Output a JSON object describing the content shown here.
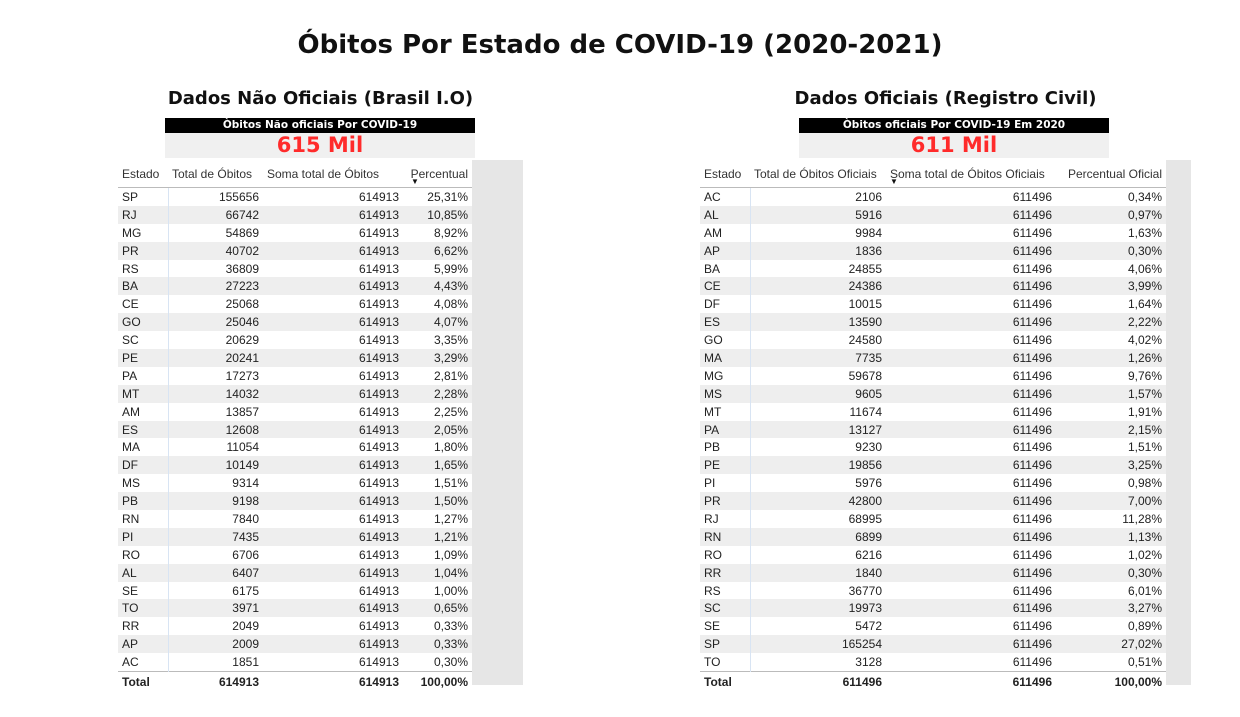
{
  "title": "Óbitos Por Estado de COVID-19 (2020-2021)",
  "left": {
    "panel_title": "Dados Não Oficiais (Brasil I.O)",
    "card_header": "Òbitos Não oficiais Por COVID-19",
    "card_value": "615 Mil",
    "columns": [
      "Estado",
      "Total de Óbitos",
      "Soma total de Óbitos",
      "Percentual"
    ],
    "sort_icon": "sort-descending-icon",
    "rows": [
      [
        "SP",
        "155656",
        "614913",
        "25,31%"
      ],
      [
        "RJ",
        "66742",
        "614913",
        "10,85%"
      ],
      [
        "MG",
        "54869",
        "614913",
        "8,92%"
      ],
      [
        "PR",
        "40702",
        "614913",
        "6,62%"
      ],
      [
        "RS",
        "36809",
        "614913",
        "5,99%"
      ],
      [
        "BA",
        "27223",
        "614913",
        "4,43%"
      ],
      [
        "CE",
        "25068",
        "614913",
        "4,08%"
      ],
      [
        "GO",
        "25046",
        "614913",
        "4,07%"
      ],
      [
        "SC",
        "20629",
        "614913",
        "3,35%"
      ],
      [
        "PE",
        "20241",
        "614913",
        "3,29%"
      ],
      [
        "PA",
        "17273",
        "614913",
        "2,81%"
      ],
      [
        "MT",
        "14032",
        "614913",
        "2,28%"
      ],
      [
        "AM",
        "13857",
        "614913",
        "2,25%"
      ],
      [
        "ES",
        "12608",
        "614913",
        "2,05%"
      ],
      [
        "MA",
        "11054",
        "614913",
        "1,80%"
      ],
      [
        "DF",
        "10149",
        "614913",
        "1,65%"
      ],
      [
        "MS",
        "9314",
        "614913",
        "1,51%"
      ],
      [
        "PB",
        "9198",
        "614913",
        "1,50%"
      ],
      [
        "RN",
        "7840",
        "614913",
        "1,27%"
      ],
      [
        "PI",
        "7435",
        "614913",
        "1,21%"
      ],
      [
        "RO",
        "6706",
        "614913",
        "1,09%"
      ],
      [
        "AL",
        "6407",
        "614913",
        "1,04%"
      ],
      [
        "SE",
        "6175",
        "614913",
        "1,00%"
      ],
      [
        "TO",
        "3971",
        "614913",
        "0,65%"
      ],
      [
        "RR",
        "2049",
        "614913",
        "0,33%"
      ],
      [
        "AP",
        "2009",
        "614913",
        "0,33%"
      ],
      [
        "AC",
        "1851",
        "614913",
        "0,30%"
      ]
    ],
    "total": [
      "Total",
      "614913",
      "614913",
      "100,00%"
    ]
  },
  "right": {
    "panel_title": "Dados Oficiais (Registro Civil)",
    "card_header": "Òbitos oficiais Por COVID-19 Em 2020",
    "card_value": "611 Mil",
    "columns": [
      "Estado",
      "Total de Óbitos Oficiais",
      "Soma total de Óbitos Oficiais",
      "Percentual Oficial"
    ],
    "sort_icon": "sort-descending-icon",
    "rows": [
      [
        "AC",
        "2106",
        "611496",
        "0,34%"
      ],
      [
        "AL",
        "5916",
        "611496",
        "0,97%"
      ],
      [
        "AM",
        "9984",
        "611496",
        "1,63%"
      ],
      [
        "AP",
        "1836",
        "611496",
        "0,30%"
      ],
      [
        "BA",
        "24855",
        "611496",
        "4,06%"
      ],
      [
        "CE",
        "24386",
        "611496",
        "3,99%"
      ],
      [
        "DF",
        "10015",
        "611496",
        "1,64%"
      ],
      [
        "ES",
        "13590",
        "611496",
        "2,22%"
      ],
      [
        "GO",
        "24580",
        "611496",
        "4,02%"
      ],
      [
        "MA",
        "7735",
        "611496",
        "1,26%"
      ],
      [
        "MG",
        "59678",
        "611496",
        "9,76%"
      ],
      [
        "MS",
        "9605",
        "611496",
        "1,57%"
      ],
      [
        "MT",
        "11674",
        "611496",
        "1,91%"
      ],
      [
        "PA",
        "13127",
        "611496",
        "2,15%"
      ],
      [
        "PB",
        "9230",
        "611496",
        "1,51%"
      ],
      [
        "PE",
        "19856",
        "611496",
        "3,25%"
      ],
      [
        "PI",
        "5976",
        "611496",
        "0,98%"
      ],
      [
        "PR",
        "42800",
        "611496",
        "7,00%"
      ],
      [
        "RJ",
        "68995",
        "611496",
        "11,28%"
      ],
      [
        "RN",
        "6899",
        "611496",
        "1,13%"
      ],
      [
        "RO",
        "6216",
        "611496",
        "1,02%"
      ],
      [
        "RR",
        "1840",
        "611496",
        "0,30%"
      ],
      [
        "RS",
        "36770",
        "611496",
        "6,01%"
      ],
      [
        "SC",
        "19973",
        "611496",
        "3,27%"
      ],
      [
        "SE",
        "5472",
        "611496",
        "0,89%"
      ],
      [
        "SP",
        "165254",
        "611496",
        "27,02%"
      ],
      [
        "TO",
        "3128",
        "611496",
        "0,51%"
      ]
    ],
    "total": [
      "Total",
      "611496",
      "611496",
      "100,00%"
    ]
  }
}
